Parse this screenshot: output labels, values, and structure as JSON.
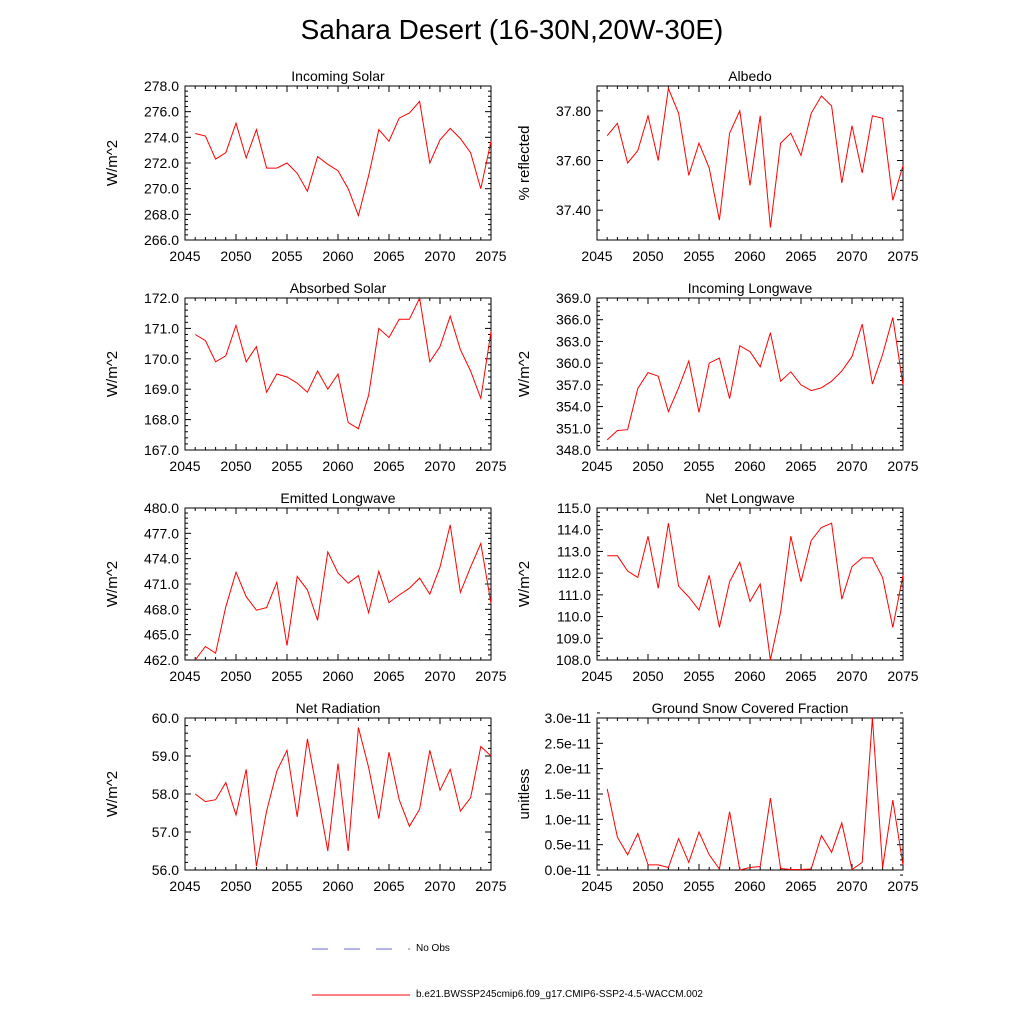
{
  "title": "Sahara Desert (16-30N,20W-30E)",
  "colors": {
    "series": "#ff0000",
    "no_obs": "#6a6ad8",
    "axis": "#000000"
  },
  "legend": {
    "items": [
      {
        "label": "No Obs",
        "style": "dashed"
      },
      {
        "label": "b.e21.BWSSP245cmip6.f09_g17.CMIP6-SSP2-4.5-WACCM.002",
        "style": "solid"
      }
    ]
  },
  "chart_data": [
    {
      "type": "line",
      "title": "Incoming Solar",
      "ylabel": "W/m^2",
      "xlim": [
        2045,
        2075
      ],
      "ylim": [
        266,
        278
      ],
      "xticks": [
        "2045",
        "2050",
        "2055",
        "2060",
        "2065",
        "2070",
        "2075"
      ],
      "yticks": [
        "266.0",
        "268.0",
        "270.0",
        "272.0",
        "274.0",
        "276.0",
        "278.0"
      ],
      "x": [
        2046,
        2047,
        2048,
        2049,
        2050,
        2051,
        2052,
        2053,
        2054,
        2055,
        2056,
        2057,
        2058,
        2059,
        2060,
        2061,
        2062,
        2063,
        2064,
        2065,
        2066,
        2067,
        2068,
        2069,
        2070,
        2071,
        2072,
        2073,
        2074,
        2075
      ],
      "series": [
        {
          "name": "b.e21.BWSSP245cmip6.f09_g17.CMIP6-SSP2-4.5-WACCM.002",
          "values": [
            274.3,
            274.1,
            272.3,
            272.8,
            275.1,
            272.4,
            274.6,
            271.6,
            271.6,
            272.0,
            271.2,
            269.8,
            272.5,
            271.9,
            271.4,
            270.0,
            267.9,
            271.0,
            274.6,
            273.7,
            275.5,
            275.9,
            276.8,
            272.0,
            273.8,
            274.7,
            273.9,
            272.8,
            270.0,
            273.7
          ]
        }
      ]
    },
    {
      "type": "line",
      "title": "Albedo",
      "ylabel": "% reflected",
      "xlim": [
        2045,
        2075
      ],
      "ylim": [
        37.28,
        37.9
      ],
      "xticks": [
        "2045",
        "2050",
        "2055",
        "2060",
        "2065",
        "2070",
        "2075"
      ],
      "yticks": [
        "37.40",
        "37.60",
        "37.80"
      ],
      "x": [
        2046,
        2047,
        2048,
        2049,
        2050,
        2051,
        2052,
        2053,
        2054,
        2055,
        2056,
        2057,
        2058,
        2059,
        2060,
        2061,
        2062,
        2063,
        2064,
        2065,
        2066,
        2067,
        2068,
        2069,
        2070,
        2071,
        2072,
        2073,
        2074,
        2075
      ],
      "series": [
        {
          "name": "b.e21.BWSSP245cmip6.f09_g17.CMIP6-SSP2-4.5-WACCM.002",
          "values": [
            37.7,
            37.75,
            37.59,
            37.64,
            37.78,
            37.6,
            37.89,
            37.79,
            37.54,
            37.67,
            37.57,
            37.36,
            37.71,
            37.8,
            37.5,
            37.78,
            37.33,
            37.67,
            37.71,
            37.62,
            37.79,
            37.86,
            37.82,
            37.51,
            37.74,
            37.55,
            37.78,
            37.77,
            37.44,
            37.58
          ]
        }
      ]
    },
    {
      "type": "line",
      "title": "Absorbed Solar",
      "ylabel": "W/m^2",
      "xlim": [
        2045,
        2075
      ],
      "ylim": [
        167,
        172
      ],
      "xticks": [
        "2045",
        "2050",
        "2055",
        "2060",
        "2065",
        "2070",
        "2075"
      ],
      "yticks": [
        "167.0",
        "168.0",
        "169.0",
        "170.0",
        "171.0",
        "172.0"
      ],
      "x": [
        2046,
        2047,
        2048,
        2049,
        2050,
        2051,
        2052,
        2053,
        2054,
        2055,
        2056,
        2057,
        2058,
        2059,
        2060,
        2061,
        2062,
        2063,
        2064,
        2065,
        2066,
        2067,
        2068,
        2069,
        2070,
        2071,
        2072,
        2073,
        2074,
        2075
      ],
      "series": [
        {
          "name": "b.e21.BWSSP245cmip6.f09_g17.CMIP6-SSP2-4.5-WACCM.002",
          "values": [
            170.8,
            170.6,
            169.9,
            170.1,
            171.1,
            169.9,
            170.4,
            168.9,
            169.5,
            169.4,
            169.2,
            168.9,
            169.6,
            169.0,
            169.5,
            167.9,
            167.7,
            168.8,
            171.0,
            170.7,
            171.3,
            171.3,
            172.0,
            169.9,
            170.4,
            171.4,
            170.3,
            169.6,
            168.7,
            170.9
          ]
        }
      ]
    },
    {
      "type": "line",
      "title": "Incoming Longwave",
      "ylabel": "W/m^2",
      "xlim": [
        2045,
        2075
      ],
      "ylim": [
        348,
        369
      ],
      "xticks": [
        "2045",
        "2050",
        "2055",
        "2060",
        "2065",
        "2070",
        "2075"
      ],
      "yticks": [
        "348.0",
        "351.0",
        "354.0",
        "357.0",
        "360.0",
        "363.0",
        "366.0",
        "369.0"
      ],
      "x": [
        2046,
        2047,
        2048,
        2049,
        2050,
        2051,
        2052,
        2053,
        2054,
        2055,
        2056,
        2057,
        2058,
        2059,
        2060,
        2061,
        2062,
        2063,
        2064,
        2065,
        2066,
        2067,
        2068,
        2069,
        2070,
        2071,
        2072,
        2073,
        2074,
        2075
      ],
      "series": [
        {
          "name": "b.e21.BWSSP245cmip6.f09_g17.CMIP6-SSP2-4.5-WACCM.002",
          "values": [
            349.4,
            350.7,
            350.8,
            356.5,
            358.7,
            358.2,
            353.3,
            356.6,
            360.3,
            353.2,
            360.0,
            360.7,
            355.1,
            362.4,
            361.6,
            359.5,
            364.2,
            357.5,
            358.8,
            357.0,
            356.2,
            356.6,
            357.5,
            358.9,
            360.9,
            365.4,
            357.1,
            361.2,
            366.3,
            357.0
          ]
        }
      ]
    },
    {
      "type": "line",
      "title": "Emitted Longwave",
      "ylabel": "W/m^2",
      "xlim": [
        2045,
        2075
      ],
      "ylim": [
        462,
        480
      ],
      "xticks": [
        "2045",
        "2050",
        "2055",
        "2060",
        "2065",
        "2070",
        "2075"
      ],
      "yticks": [
        "462.0",
        "465.0",
        "468.0",
        "471.0",
        "474.0",
        "477.0",
        "480.0"
      ],
      "x": [
        2046,
        2047,
        2048,
        2049,
        2050,
        2051,
        2052,
        2053,
        2054,
        2055,
        2056,
        2057,
        2058,
        2059,
        2060,
        2061,
        2062,
        2063,
        2064,
        2065,
        2066,
        2067,
        2068,
        2069,
        2070,
        2071,
        2072,
        2073,
        2074,
        2075
      ],
      "series": [
        {
          "name": "b.e21.BWSSP245cmip6.f09_g17.CMIP6-SSP2-4.5-WACCM.002",
          "values": [
            462.0,
            463.6,
            462.8,
            468.3,
            472.4,
            469.5,
            467.9,
            468.2,
            471.2,
            463.7,
            471.9,
            470.3,
            466.7,
            474.8,
            472.3,
            471.1,
            472.0,
            467.6,
            472.5,
            468.8,
            469.7,
            470.5,
            471.7,
            469.8,
            473.0,
            478.0,
            470.0,
            473.0,
            475.8,
            468.7
          ]
        }
      ]
    },
    {
      "type": "line",
      "title": "Net Longwave",
      "ylabel": "W/m^2",
      "xlim": [
        2045,
        2075
      ],
      "ylim": [
        108,
        115
      ],
      "xticks": [
        "2045",
        "2050",
        "2055",
        "2060",
        "2065",
        "2070",
        "2075"
      ],
      "yticks": [
        "108.0",
        "109.0",
        "110.0",
        "111.0",
        "112.0",
        "113.0",
        "114.0",
        "115.0"
      ],
      "x": [
        2046,
        2047,
        2048,
        2049,
        2050,
        2051,
        2052,
        2053,
        2054,
        2055,
        2056,
        2057,
        2058,
        2059,
        2060,
        2061,
        2062,
        2063,
        2064,
        2065,
        2066,
        2067,
        2068,
        2069,
        2070,
        2071,
        2072,
        2073,
        2074,
        2075
      ],
      "series": [
        {
          "name": "b.e21.BWSSP245cmip6.f09_g17.CMIP6-SSP2-4.5-WACCM.002",
          "values": [
            112.8,
            112.8,
            112.1,
            111.8,
            113.7,
            111.3,
            114.3,
            111.4,
            110.9,
            110.3,
            111.9,
            109.5,
            111.6,
            112.5,
            110.7,
            111.5,
            108.0,
            110.2,
            113.7,
            111.6,
            113.5,
            114.1,
            114.3,
            110.8,
            112.3,
            112.7,
            112.7,
            111.8,
            109.5,
            111.9
          ]
        }
      ]
    },
    {
      "type": "line",
      "title": "Net Radiation",
      "ylabel": "W/m^2",
      "xlim": [
        2045,
        2075
      ],
      "ylim": [
        56,
        60
      ],
      "xticks": [
        "2045",
        "2050",
        "2055",
        "2060",
        "2065",
        "2070",
        "2075"
      ],
      "yticks": [
        "56.0",
        "57.0",
        "58.0",
        "59.0",
        "60.0"
      ],
      "x": [
        2046,
        2047,
        2048,
        2049,
        2050,
        2051,
        2052,
        2053,
        2054,
        2055,
        2056,
        2057,
        2058,
        2059,
        2060,
        2061,
        2062,
        2063,
        2064,
        2065,
        2066,
        2067,
        2068,
        2069,
        2070,
        2071,
        2072,
        2073,
        2074,
        2075
      ],
      "series": [
        {
          "name": "b.e21.BWSSP245cmip6.f09_g17.CMIP6-SSP2-4.5-WACCM.002",
          "values": [
            58.0,
            57.8,
            57.85,
            58.3,
            57.45,
            58.65,
            56.1,
            57.55,
            58.6,
            59.15,
            57.4,
            59.45,
            58.0,
            56.5,
            58.8,
            56.5,
            59.75,
            58.7,
            57.35,
            59.1,
            57.85,
            57.15,
            57.6,
            59.15,
            58.1,
            58.65,
            57.55,
            57.9,
            59.25,
            59.0
          ]
        }
      ]
    },
    {
      "type": "line",
      "title": "Ground Snow Covered Fraction",
      "ylabel": "unitless",
      "xlim": [
        2045,
        2075
      ],
      "ylim": [
        0,
        3e-11
      ],
      "xticks": [
        "2045",
        "2050",
        "2055",
        "2060",
        "2065",
        "2070",
        "2075"
      ],
      "yticks": [
        "0.0e-11",
        "0.5e-11",
        "1.0e-11",
        "1.5e-11",
        "2.0e-11",
        "2.5e-11",
        "3.0e-11"
      ],
      "x": [
        2046,
        2047,
        2048,
        2049,
        2050,
        2051,
        2052,
        2053,
        2054,
        2055,
        2056,
        2057,
        2058,
        2059,
        2060,
        2061,
        2062,
        2063,
        2064,
        2065,
        2066,
        2067,
        2068,
        2069,
        2070,
        2071,
        2072,
        2073,
        2074,
        2075
      ],
      "series": [
        {
          "name": "b.e21.BWSSP245cmip6.f09_g17.CMIP6-SSP2-4.5-WACCM.002",
          "values": [
            1.6e-11,
            6.5e-12,
            3e-12,
            7.2e-12,
            1e-12,
            1e-12,
            5e-13,
            6.2e-12,
            1.5e-12,
            7.5e-12,
            3e-12,
            2e-13,
            1.15e-11,
            0.0,
            5e-13,
            7e-13,
            1.42e-11,
            3e-13,
            1e-13,
            1e-13,
            2e-13,
            6.8e-12,
            3.5e-12,
            9.3e-12,
            1e-13,
            1.5e-12,
            3e-11,
            5e-13,
            1.38e-11,
            1e-12
          ]
        }
      ]
    }
  ]
}
